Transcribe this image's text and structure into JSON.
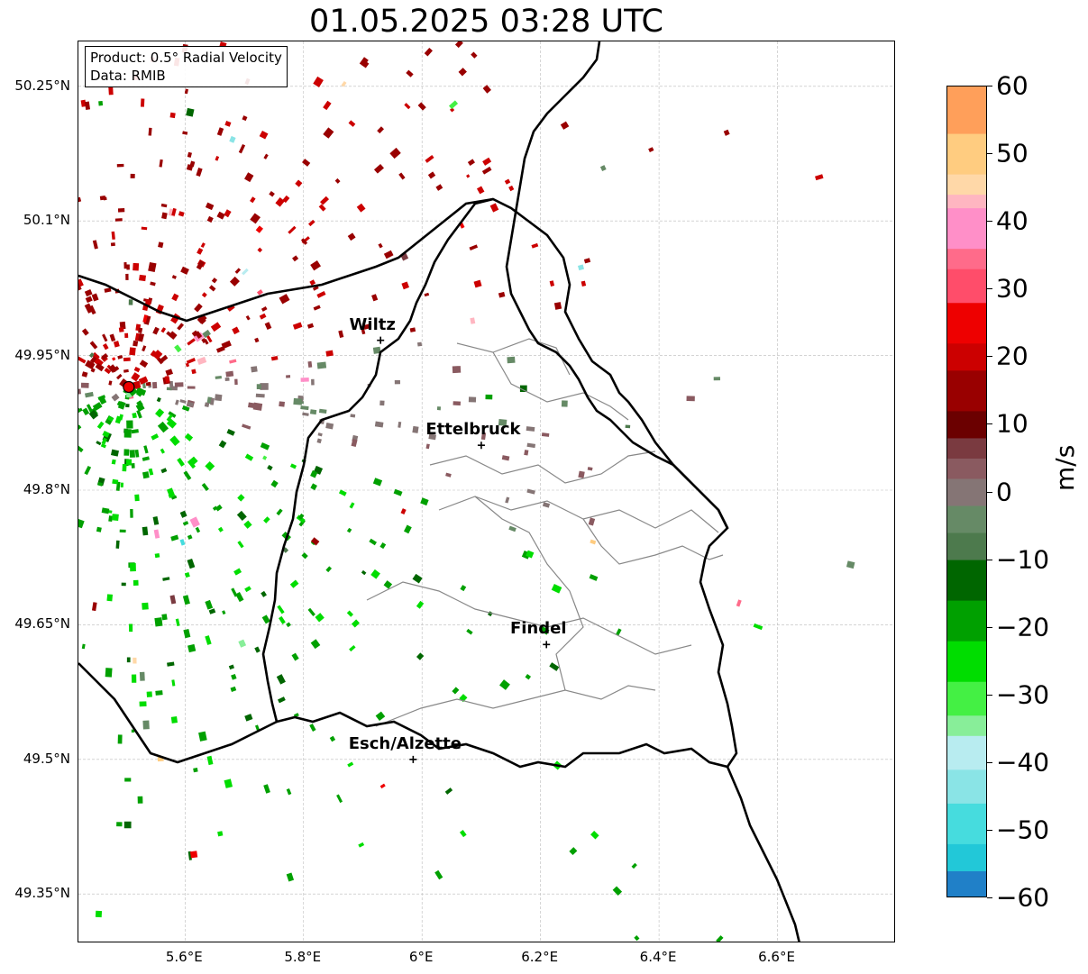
{
  "title": "01.05.2025 03:28 UTC",
  "info_box": {
    "product": "Product: 0.5° Radial Velocity",
    "data": "Data: RMIB"
  },
  "map": {
    "lon_range": [
      5.42,
      6.8
    ],
    "lat_range": [
      49.295,
      50.3
    ],
    "lat_ticks": [
      {
        "value": 50.25,
        "label": "50.25°N"
      },
      {
        "value": 50.1,
        "label": "50.1°N"
      },
      {
        "value": 49.95,
        "label": "49.95°N"
      },
      {
        "value": 49.8,
        "label": "49.8°N"
      },
      {
        "value": 49.65,
        "label": "49.65°N"
      },
      {
        "value": 49.5,
        "label": "49.5°N"
      },
      {
        "value": 49.35,
        "label": "49.35°N"
      }
    ],
    "lon_ticks": [
      {
        "value": 5.6,
        "label": "5.6°E"
      },
      {
        "value": 5.8,
        "label": "5.8°E"
      },
      {
        "value": 6.0,
        "label": "6°E"
      },
      {
        "value": 6.2,
        "label": "6.2°E"
      },
      {
        "value": 6.4,
        "label": "6.4°E"
      },
      {
        "value": 6.6,
        "label": "6.6°E"
      }
    ],
    "radar_site": {
      "lon": 5.505,
      "lat": 49.915
    },
    "cities": [
      {
        "name": "Wiltz",
        "lon": 5.93,
        "lat": 49.967
      },
      {
        "name": "Ettelbruck",
        "lon": 6.1,
        "lat": 49.85
      },
      {
        "name": "Findel",
        "lon": 6.21,
        "lat": 49.628
      },
      {
        "name": "Esch/Alzette",
        "lon": 5.985,
        "lat": 49.5
      }
    ],
    "grid": true
  },
  "colorbar": {
    "label": "m/s",
    "min": -60,
    "max": 60,
    "ticks": [
      {
        "value": 60,
        "label": "60"
      },
      {
        "value": 50,
        "label": "50"
      },
      {
        "value": 40,
        "label": "40"
      },
      {
        "value": 30,
        "label": "30"
      },
      {
        "value": 20,
        "label": "20"
      },
      {
        "value": 10,
        "label": "10"
      },
      {
        "value": 0,
        "label": "0"
      },
      {
        "value": -10,
        "label": "−10"
      },
      {
        "value": -20,
        "label": "−20"
      },
      {
        "value": -30,
        "label": "−30"
      },
      {
        "value": -40,
        "label": "−40"
      },
      {
        "value": -50,
        "label": "−50"
      },
      {
        "value": -60,
        "label": "−60"
      }
    ],
    "stops": [
      {
        "from": 53,
        "to": 60,
        "color": "#ff9f5a"
      },
      {
        "from": 47,
        "to": 53,
        "color": "#ffcc80"
      },
      {
        "from": 44,
        "to": 47,
        "color": "#ffd8a8"
      },
      {
        "from": 42,
        "to": 44,
        "color": "#ffb6c1"
      },
      {
        "from": 36,
        "to": 42,
        "color": "#ff8fc8"
      },
      {
        "from": 33,
        "to": 36,
        "color": "#ff6b8a"
      },
      {
        "from": 28,
        "to": 33,
        "color": "#ff4d6a"
      },
      {
        "from": 22,
        "to": 28,
        "color": "#ee0000"
      },
      {
        "from": 18,
        "to": 22,
        "color": "#cc0000"
      },
      {
        "from": 12,
        "to": 18,
        "color": "#990000"
      },
      {
        "from": 8,
        "to": 12,
        "color": "#6b0000"
      },
      {
        "from": 5,
        "to": 8,
        "color": "#7a3a40"
      },
      {
        "from": 2,
        "to": 5,
        "color": "#8a5a60"
      },
      {
        "from": -2,
        "to": 2,
        "color": "#857575"
      },
      {
        "from": -6,
        "to": -2,
        "color": "#668a66"
      },
      {
        "from": -10,
        "to": -6,
        "color": "#4d7a4d"
      },
      {
        "from": -16,
        "to": -10,
        "color": "#006600"
      },
      {
        "from": -22,
        "to": -16,
        "color": "#00a000"
      },
      {
        "from": -28,
        "to": -22,
        "color": "#00dd00"
      },
      {
        "from": -33,
        "to": -28,
        "color": "#44f044"
      },
      {
        "from": -36,
        "to": -33,
        "color": "#88ee99"
      },
      {
        "from": -41,
        "to": -36,
        "color": "#b8ecf0"
      },
      {
        "from": -46,
        "to": -41,
        "color": "#8ae4e6"
      },
      {
        "from": -52,
        "to": -46,
        "color": "#46dcde"
      },
      {
        "from": -56,
        "to": -52,
        "color": "#22c8d8"
      },
      {
        "from": -60,
        "to": -56,
        "color": "#2080c8"
      }
    ]
  }
}
